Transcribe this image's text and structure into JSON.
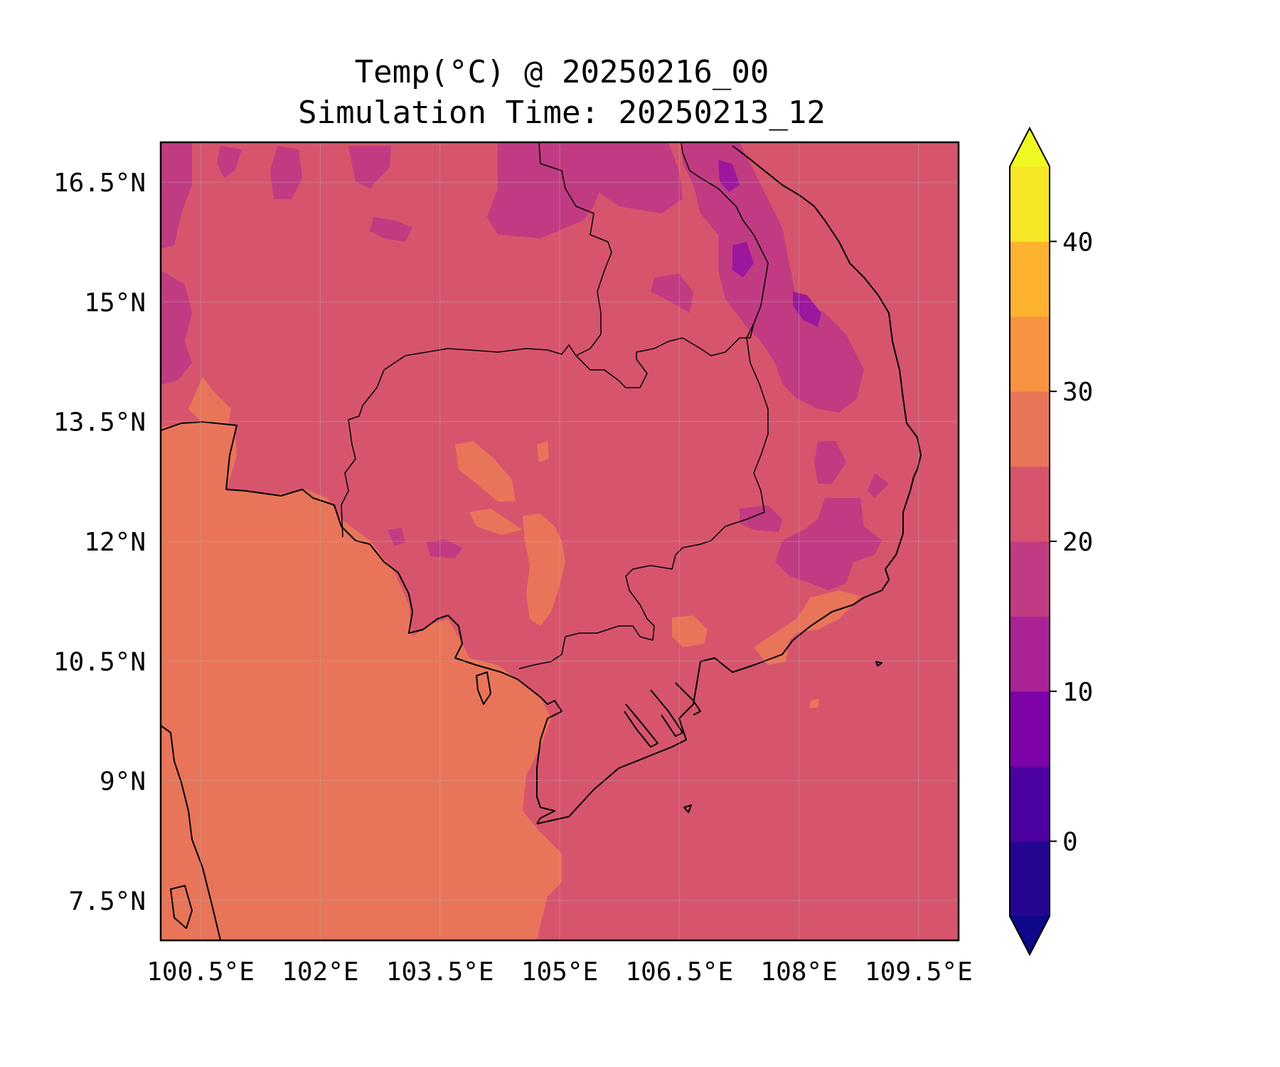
{
  "title": {
    "line1": "Temp(°C) @ 20250216_00",
    "line2": "Simulation Time: 20250213_12"
  },
  "map": {
    "x_range": [
      100.0,
      110.0
    ],
    "y_range": [
      7.0,
      17.0
    ],
    "x_ticks": [
      {
        "value": 100.5,
        "label": "100.5°E"
      },
      {
        "value": 102.0,
        "label": "102°E"
      },
      {
        "value": 103.5,
        "label": "103.5°E"
      },
      {
        "value": 105.0,
        "label": "105°E"
      },
      {
        "value": 106.5,
        "label": "106.5°E"
      },
      {
        "value": 108.0,
        "label": "108°E"
      },
      {
        "value": 109.5,
        "label": "109.5°E"
      }
    ],
    "y_ticks": [
      {
        "value": 16.5,
        "label": "16.5°N"
      },
      {
        "value": 15.0,
        "label": "15°N"
      },
      {
        "value": 13.5,
        "label": "13.5°N"
      },
      {
        "value": 12.0,
        "label": "12°N"
      },
      {
        "value": 10.5,
        "label": "10.5°N"
      },
      {
        "value": 9.0,
        "label": "9°N"
      },
      {
        "value": 7.5,
        "label": "7.5°N"
      }
    ],
    "grid": true,
    "fill_colors": {
      "land_main": "#d6556d",
      "sea_warm": "#e87559",
      "cool_patch": "#c13b82",
      "cold_patch": "#9c179e",
      "coast": "#000000"
    }
  },
  "colorbar": {
    "range": [
      -5,
      45
    ],
    "levels": [
      -5,
      0,
      5,
      10,
      15,
      20,
      25,
      30,
      35,
      40,
      45
    ],
    "colors": [
      "#240691",
      "#4c02a1",
      "#7e03a8",
      "#a92395",
      "#c13b82",
      "#d6556d",
      "#e87559",
      "#f89441",
      "#fdb32f",
      "#f5e726"
    ],
    "under_color": "#0d0887",
    "over_color": "#f0f921",
    "ticks": [
      {
        "value": 0,
        "label": "0"
      },
      {
        "value": 10,
        "label": "10"
      },
      {
        "value": 20,
        "label": "20"
      },
      {
        "value": 30,
        "label": "30"
      },
      {
        "value": 40,
        "label": "40"
      }
    ]
  }
}
